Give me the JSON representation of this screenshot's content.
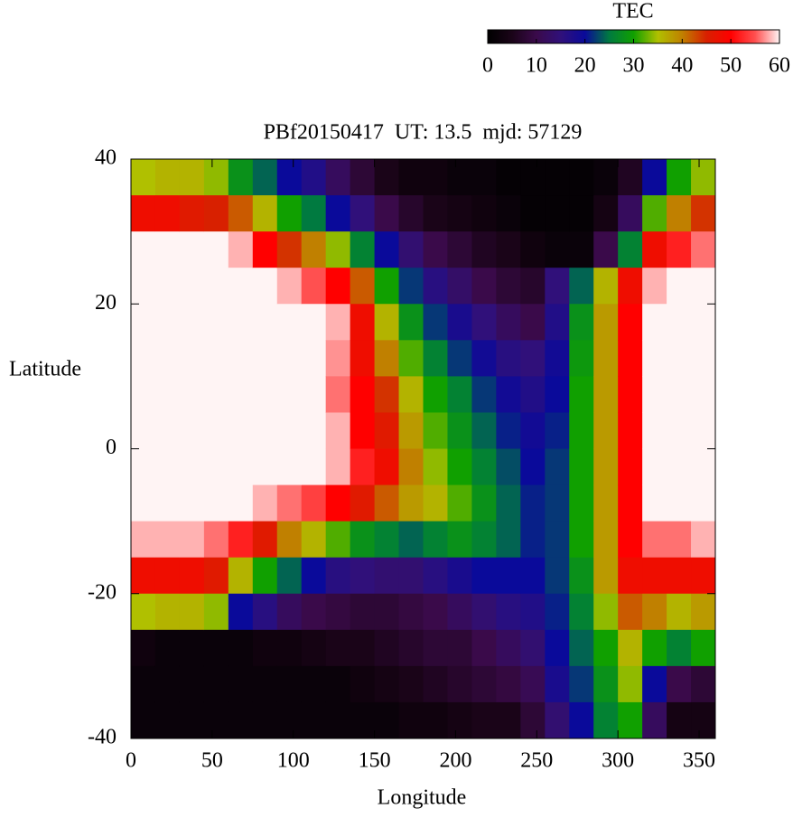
{
  "chart_data": {
    "type": "heatmap",
    "title": "PBf20150417  UT: 13.5  mjd: 57129",
    "x_label": "Longitude",
    "y_label": "Latitude",
    "xlim": [
      0,
      360
    ],
    "ylim": [
      -40,
      40
    ],
    "xticks": [
      0,
      50,
      100,
      150,
      200,
      250,
      300,
      350
    ],
    "yticks": [
      -40,
      -20,
      0,
      20,
      40
    ],
    "z": [
      [
        35,
        48,
        60,
        60,
        60,
        60,
        60,
        60,
        60,
        60,
        58,
        48,
        35,
        3,
        2,
        2
      ],
      [
        36,
        48,
        60,
        60,
        60,
        60,
        60,
        60,
        60,
        60,
        58,
        48,
        36,
        2,
        2,
        2
      ],
      [
        36,
        46,
        60,
        60,
        60,
        60,
        60,
        60,
        60,
        60,
        58,
        48,
        36,
        2,
        2,
        2
      ],
      [
        34,
        45,
        60,
        60,
        60,
        60,
        60,
        60,
        60,
        60,
        56,
        46,
        34,
        2,
        2,
        2
      ],
      [
        28,
        42,
        58,
        60,
        60,
        60,
        60,
        60,
        60,
        60,
        52,
        36,
        20,
        2,
        2,
        2
      ],
      [
        24,
        36,
        50,
        60,
        60,
        60,
        60,
        60,
        60,
        58,
        46,
        30,
        16,
        3,
        2,
        2
      ],
      [
        20,
        30,
        44,
        58,
        60,
        60,
        60,
        60,
        60,
        56,
        40,
        24,
        12,
        3,
        2,
        2
      ],
      [
        17,
        25,
        40,
        55,
        60,
        60,
        60,
        60,
        60,
        54,
        36,
        20,
        10,
        4,
        2,
        2
      ],
      [
        12,
        20,
        34,
        50,
        58,
        57,
        56,
        58,
        58,
        50,
        32,
        16,
        9,
        5,
        2,
        2
      ],
      [
        8,
        15,
        26,
        42,
        48,
        48,
        50,
        50,
        52,
        46,
        28,
        15,
        8,
        5,
        3,
        2
      ],
      [
        5,
        10,
        20,
        30,
        36,
        40,
        44,
        46,
        48,
        42,
        26,
        14,
        8,
        6,
        4,
        2
      ],
      [
        3,
        7,
        14,
        22,
        28,
        32,
        36,
        38,
        40,
        38,
        24,
        14,
        9,
        7,
        5,
        3
      ],
      [
        3,
        5,
        10,
        16,
        22,
        26,
        30,
        32,
        34,
        36,
        26,
        16,
        10,
        8,
        6,
        3
      ],
      [
        2,
        4,
        8,
        13,
        18,
        22,
        26,
        28,
        30,
        32,
        28,
        18,
        12,
        8,
        7,
        4
      ],
      [
        2,
        3,
        6,
        10,
        15,
        19,
        22,
        24,
        26,
        28,
        26,
        20,
        14,
        10,
        8,
        5
      ],
      [
        1,
        2,
        5,
        8,
        12,
        16,
        19,
        21,
        23,
        24,
        24,
        20,
        16,
        12,
        9,
        5
      ],
      [
        1,
        1,
        3,
        7,
        10,
        15,
        17,
        19,
        20,
        21,
        21,
        20,
        17,
        14,
        11,
        8
      ],
      [
        1,
        1,
        2,
        15,
        17,
        19,
        20,
        21,
        22,
        22,
        22,
        22,
        21,
        20,
        18,
        14
      ],
      [
        1,
        1,
        2,
        24,
        28,
        29,
        30,
        30,
        30,
        30,
        30,
        28,
        26,
        24,
        22,
        20
      ],
      [
        2,
        4,
        10,
        36,
        38,
        38,
        38,
        38,
        38,
        38,
        38,
        38,
        34,
        30,
        28,
        26
      ],
      [
        6,
        12,
        26,
        48,
        50,
        50,
        50,
        50,
        50,
        50,
        50,
        48,
        42,
        36,
        34,
        30
      ],
      [
        20,
        32,
        48,
        58,
        60,
        60,
        60,
        60,
        60,
        60,
        56,
        48,
        40,
        30,
        20,
        12
      ],
      [
        30,
        40,
        52,
        60,
        60,
        60,
        60,
        60,
        60,
        60,
        56,
        48,
        36,
        26,
        10,
        4
      ],
      [
        34,
        44,
        56,
        60,
        60,
        60,
        60,
        60,
        60,
        60,
        58,
        48,
        38,
        30,
        8,
        4
      ]
    ],
    "colorbar": {
      "label": "TEC",
      "lim": [
        0,
        60
      ],
      "ticks": [
        0,
        10,
        20,
        30,
        40,
        50,
        60
      ],
      "colors": [
        "#000000",
        "#1a0418",
        "#3a0a4a",
        "#30107a",
        "#0a0a9a",
        "#007a40",
        "#10a000",
        "#b0c000",
        "#c08000",
        "#d82000",
        "#ff0000",
        "#ff5050",
        "#fff4f4"
      ]
    }
  }
}
